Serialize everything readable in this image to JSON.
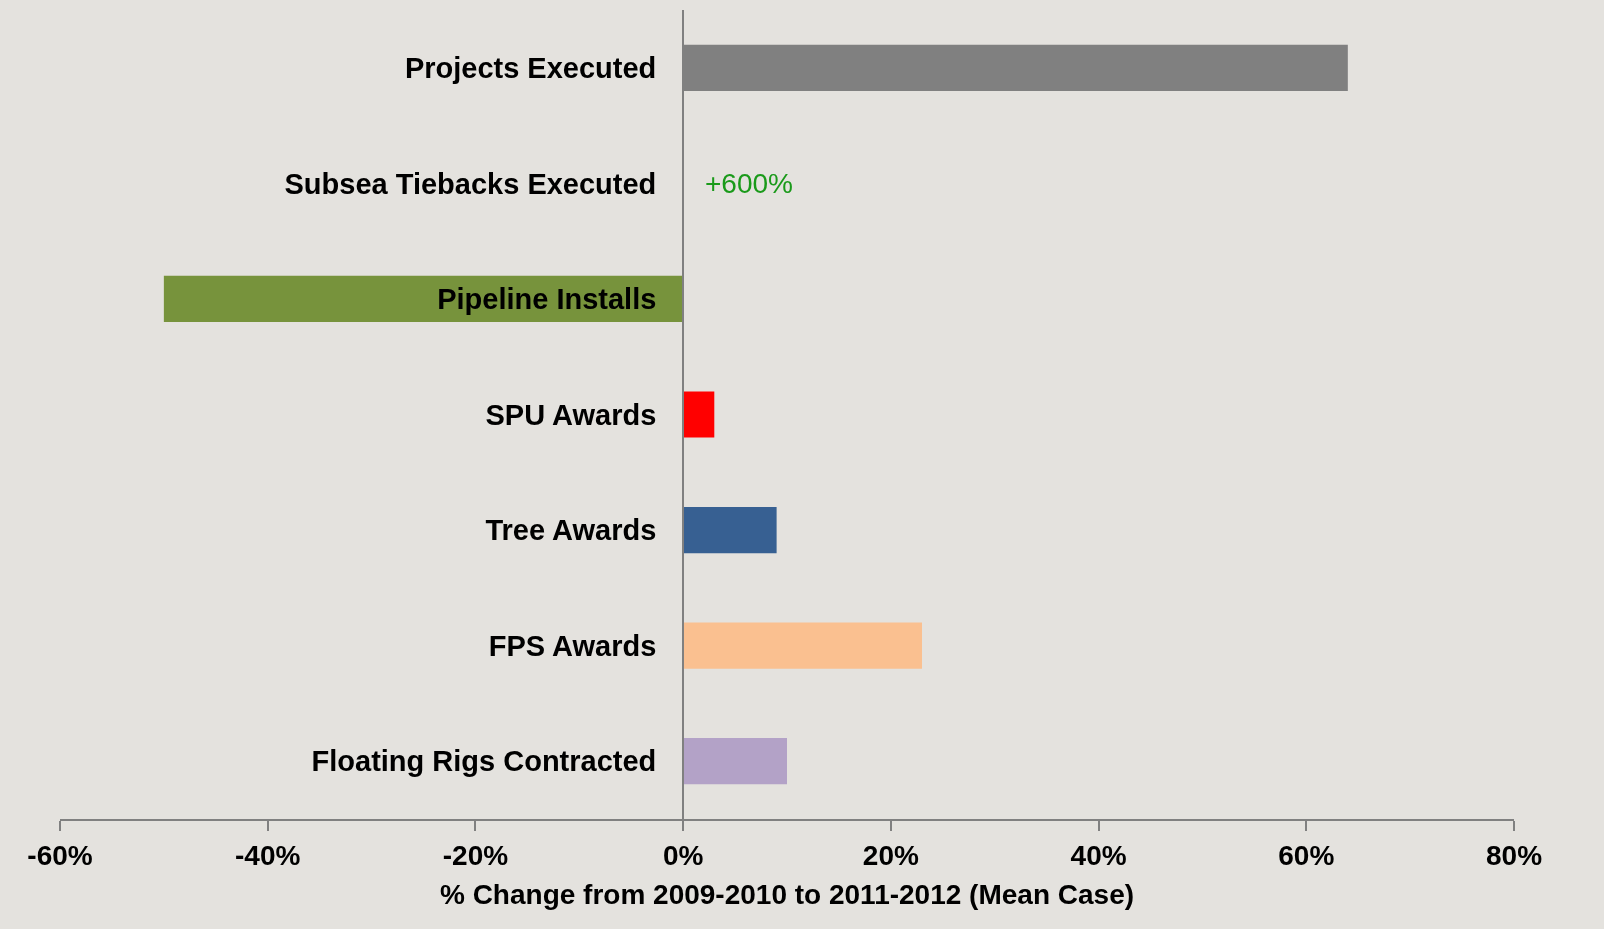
{
  "chart_data": {
    "type": "bar",
    "orientation": "horizontal",
    "categories": [
      "Projects Executed",
      "Subsea Tiebacks Executed",
      "Pipeline Installs",
      "SPU Awards",
      "Tree Awards",
      "FPS Awards",
      "Floating Rigs Contracted"
    ],
    "values": [
      64,
      null,
      -50,
      3,
      9,
      23,
      10
    ],
    "colors": [
      "#808080",
      null,
      "#77933c",
      "#ff0000",
      "#376092",
      "#fac090",
      "#b3a2c7"
    ],
    "xlim": [
      -60,
      80
    ],
    "xticks": [
      {
        "value": -60,
        "label": "-60%"
      },
      {
        "value": -40,
        "label": "-40%"
      },
      {
        "value": -20,
        "label": "-20%"
      },
      {
        "value": 0,
        "label": "0%"
      },
      {
        "value": 20,
        "label": "20%"
      },
      {
        "value": 40,
        "label": "40%"
      },
      {
        "value": 60,
        "label": "60%"
      },
      {
        "value": 80,
        "label": "80%"
      }
    ],
    "xlabel": "% Change from 2009-2010 to 2011-2012 (Mean Case)",
    "annotations": [
      "+600%"
    ],
    "grid": false
  }
}
